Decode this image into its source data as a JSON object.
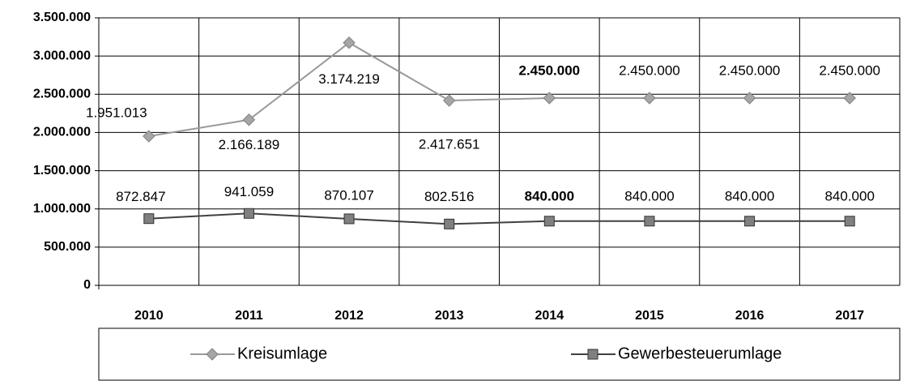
{
  "chart_data": {
    "type": "line",
    "categories": [
      "2010",
      "2011",
      "2012",
      "2013",
      "2014",
      "2015",
      "2016",
      "2017"
    ],
    "series": [
      {
        "name": "Kreisumlage",
        "color": "#999999",
        "marker": "diamond",
        "values": [
          1951013,
          2166189,
          3174219,
          2417651,
          2450000,
          2450000,
          2450000,
          2450000
        ],
        "value_labels": [
          "1.951.013",
          "2.166.189",
          "3.174.219",
          "2.417.651",
          "2.450.000",
          "2.450.000",
          "2.450.000",
          "2.450.000"
        ]
      },
      {
        "name": "Gewerbesteuerumlage",
        "color": "#404040",
        "marker": "square",
        "values": [
          872847,
          941059,
          870107,
          802516,
          840000,
          840000,
          840000,
          840000
        ],
        "value_labels": [
          "872.847",
          "941.059",
          "870.107",
          "802.516",
          "840.000",
          "840.000",
          "840.000",
          "840.000"
        ]
      }
    ],
    "ylim": [
      0,
      3500000
    ],
    "yticks": [
      0,
      {
        "value": 500000,
        "label": "500.000"
      },
      {
        "value": 1000000,
        "label": "1.000.000"
      },
      {
        "value": 1500000,
        "label": "1.500.000"
      },
      {
        "value": 2000000,
        "label": "2.000.000"
      },
      {
        "value": 2500000,
        "label": "2.500.000"
      },
      {
        "value": 3000000,
        "label": "3.000.000"
      },
      {
        "value": 3500000,
        "label": "3.500.000"
      }
    ],
    "grid": true,
    "legend": "bottom"
  }
}
